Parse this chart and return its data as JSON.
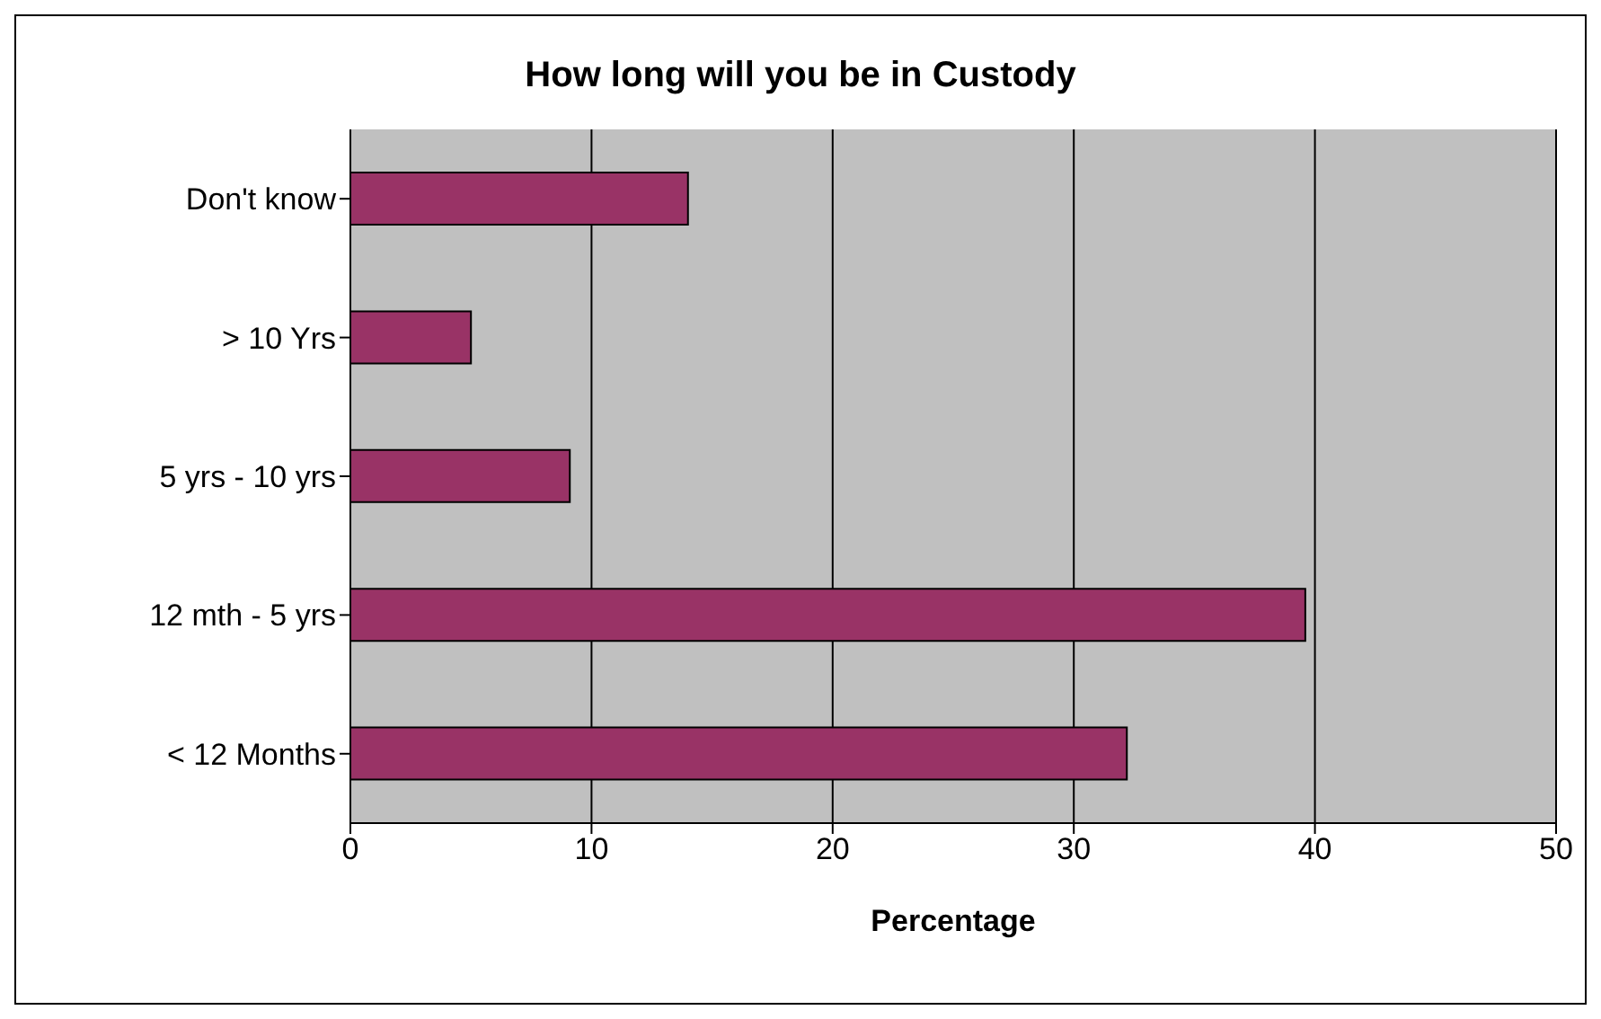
{
  "chart_data": {
    "type": "bar",
    "orientation": "horizontal",
    "title": "How long will you be in Custody",
    "xlabel": "Percentage",
    "categories": [
      "Don't know",
      "> 10 Yrs",
      "5 yrs - 10 yrs",
      "12 mth - 5 yrs",
      "< 12 Months"
    ],
    "values": [
      14,
      5,
      9.1,
      39.6,
      32.2
    ],
    "color": "#993366",
    "xlim": [
      0,
      50
    ],
    "xticks": [
      0,
      10,
      20,
      30,
      40,
      50
    ],
    "grid": "x"
  }
}
